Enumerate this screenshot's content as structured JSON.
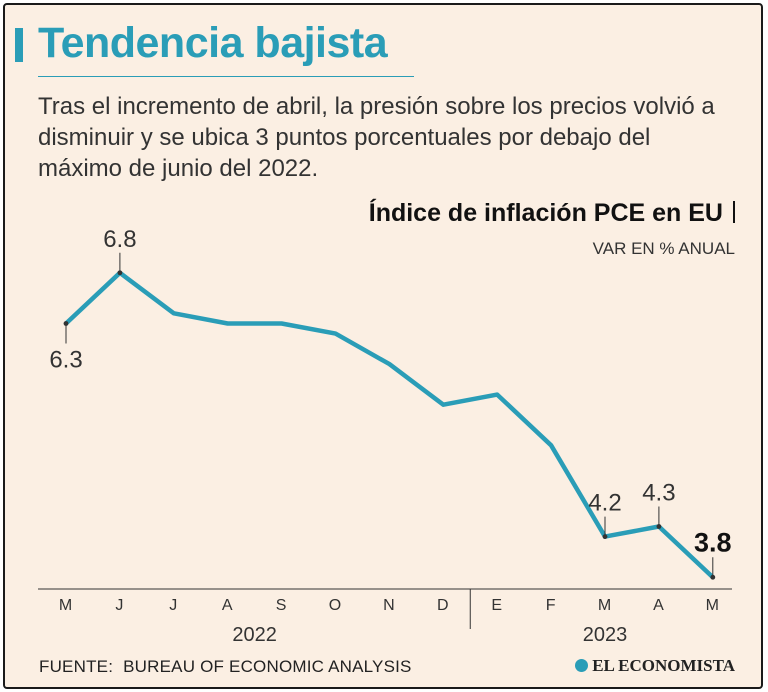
{
  "header": {
    "title": "Tendencia bajista",
    "subtitle": "Tras el incremento de abril, la presión sobre los precios volvió a disminuir y se ubica 3 puntos porcentuales por debajo del máximo de junio del 2022."
  },
  "footer": {
    "source_label": "FUENTE:",
    "source_value": "BUREAU OF ECONOMIC ANALYSIS",
    "logo_text": "EL ECONOMISTA"
  },
  "colors": {
    "accent": "#2a9db7",
    "background": "#fbefe3",
    "text": "#333333"
  },
  "chart_data": {
    "type": "line",
    "title": "Índice de inflación PCE en EU",
    "ylabel": "VAR EN % ANUAL",
    "xlabel": "",
    "categories": [
      "M",
      "J",
      "J",
      "A",
      "S",
      "O",
      "N",
      "D",
      "E",
      "F",
      "M",
      "A",
      "M"
    ],
    "years": [
      {
        "label": "2022",
        "from": 0,
        "to": 7
      },
      {
        "label": "2023",
        "from": 8,
        "to": 12
      }
    ],
    "series": [
      {
        "name": "PCE",
        "values": [
          6.3,
          6.8,
          6.4,
          6.3,
          6.3,
          6.2,
          5.9,
          5.5,
          5.6,
          5.1,
          4.2,
          4.3,
          3.8
        ]
      }
    ],
    "labels": [
      {
        "index": 0,
        "text": "6.3",
        "position": "below"
      },
      {
        "index": 1,
        "text": "6.8",
        "position": "above"
      },
      {
        "index": 10,
        "text": "4.2",
        "position": "above"
      },
      {
        "index": 11,
        "text": "4.3",
        "position": "above"
      },
      {
        "index": 12,
        "text": "3.8",
        "position": "above",
        "emphasis": true
      }
    ],
    "ylim": [
      3.3,
      7.3
    ],
    "grid": false
  }
}
